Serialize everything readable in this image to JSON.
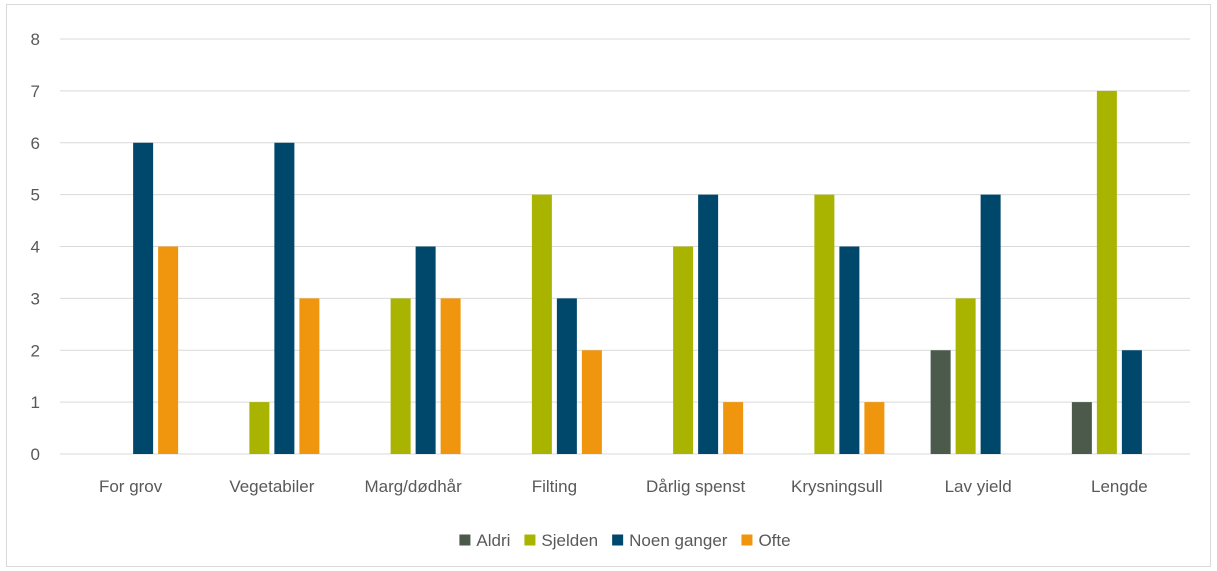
{
  "chart_data": {
    "type": "bar",
    "title": "",
    "xlabel": "",
    "ylabel": "",
    "ylim": [
      0,
      8
    ],
    "yticks": [
      0,
      1,
      2,
      3,
      4,
      5,
      6,
      7,
      8
    ],
    "grid": true,
    "legend_position": "bottom",
    "categories": [
      "For grov",
      "Vegetabiler",
      "Marg/dødhår",
      "Filting",
      "Dårlig spenst",
      "Krysningsull",
      "Lav yield",
      "Lengde"
    ],
    "series": [
      {
        "name": "Aldri",
        "color": "#4b5a4a",
        "values": [
          0,
          0,
          0,
          0,
          0,
          0,
          2,
          1
        ]
      },
      {
        "name": "Sjelden",
        "color": "#a9b400",
        "values": [
          0,
          1,
          3,
          5,
          4,
          5,
          3,
          7
        ]
      },
      {
        "name": "Noen ganger",
        "color": "#00486b",
        "values": [
          6,
          6,
          4,
          3,
          5,
          4,
          5,
          2
        ]
      },
      {
        "name": "Ofte",
        "color": "#f0960e",
        "values": [
          4,
          3,
          3,
          2,
          1,
          1,
          0,
          0
        ]
      }
    ]
  }
}
